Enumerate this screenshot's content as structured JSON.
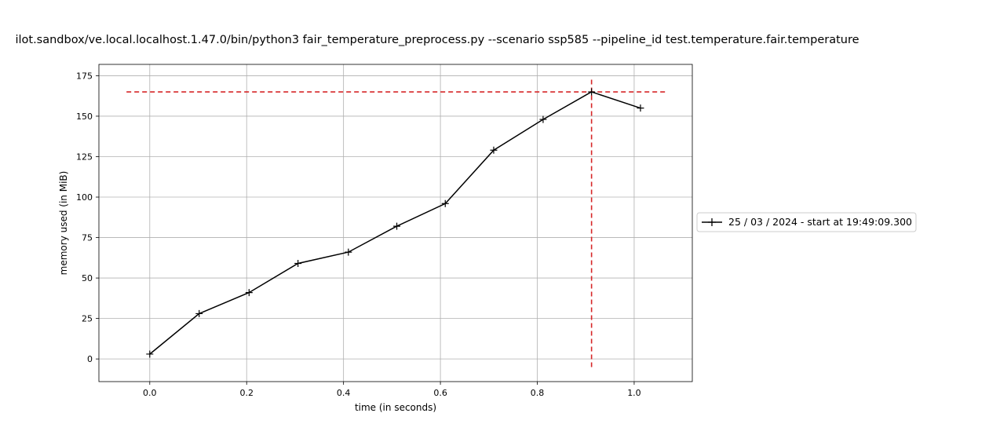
{
  "chart_data": {
    "type": "line",
    "title": "ilot.sandbox/ve.local.localhost.1.47.0/bin/python3 fair_temperature_preprocess.py --scenario ssp585 --pipeline_id test.temperature.fair.temperature",
    "xlabel": "time (in seconds)",
    "ylabel": "memory used (in MiB)",
    "xlim": [
      -0.105,
      1.12
    ],
    "ylim": [
      -14,
      182
    ],
    "xticks": [
      0.0,
      0.2,
      0.4,
      0.6,
      0.8,
      1.0
    ],
    "xtick_labels": [
      "0.0",
      "0.2",
      "0.4",
      "0.6",
      "0.8",
      "1.0"
    ],
    "yticks": [
      0,
      25,
      50,
      75,
      100,
      125,
      150,
      175
    ],
    "ytick_labels": [
      "0",
      "25",
      "50",
      "75",
      "100",
      "125",
      "150",
      "175"
    ],
    "grid": true,
    "legend_position": "center-right-outside",
    "series": [
      {
        "name": "25 / 03 / 2024 - start at 19:49:09.300",
        "color": "#000000",
        "marker": "plus",
        "x": [
          0.0,
          0.102,
          0.205,
          0.306,
          0.41,
          0.51,
          0.61,
          0.71,
          0.812,
          0.912,
          1.013
        ],
        "y": [
          3,
          28,
          41,
          59,
          66,
          82,
          96,
          129,
          148,
          165,
          155
        ]
      }
    ],
    "reference_lines": {
      "color": "#d62728",
      "peak_memory_y": 165,
      "horizontal_x_range": [
        -0.048,
        1.064
      ],
      "peak_time_x": 0.912,
      "vertical_y_range": [
        -5,
        173
      ]
    }
  }
}
